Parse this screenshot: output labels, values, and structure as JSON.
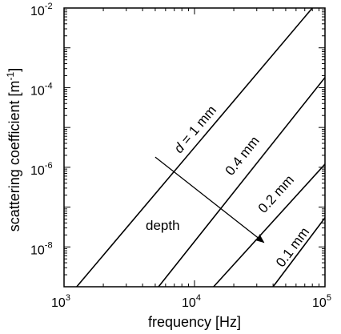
{
  "chart_data": {
    "type": "line",
    "title": "",
    "xlabel": "frequency [Hz]",
    "ylabel": "scattering coefficient [m",
    "ylabel_sup": "-1",
    "ylabel_close": "]",
    "x_scale": "log",
    "y_scale": "log",
    "xlim": [
      1000,
      100000
    ],
    "ylim": [
      1e-09,
      0.01
    ],
    "grid": false,
    "legend": "none",
    "x_ticks": [
      {
        "value": 1000,
        "base": "10",
        "exp": "3"
      },
      {
        "value": 10000,
        "base": "10",
        "exp": "4"
      },
      {
        "value": 100000,
        "base": "10",
        "exp": "5"
      }
    ],
    "y_ticks": [
      {
        "value": 1e-08,
        "base": "10",
        "exp": "-8"
      },
      {
        "value": 1e-06,
        "base": "10",
        "exp": "-6"
      },
      {
        "value": 0.0001,
        "base": "10",
        "exp": "-4"
      },
      {
        "value": 0.01,
        "base": "10",
        "exp": "-2"
      }
    ],
    "series": [
      {
        "label_italic": "d",
        "label_rest": " = 1 mm",
        "x": [
          1250,
          80000
        ],
        "y": [
          1e-09,
          0.01
        ]
      },
      {
        "label_italic": "",
        "label_rest": "0.4 mm",
        "x": [
          5300,
          100000
        ],
        "y": [
          1e-09,
          0.00018
        ]
      },
      {
        "label_italic": "",
        "label_rest": "0.2 mm",
        "x": [
          14000,
          100000
        ],
        "y": [
          1e-09,
          1.2e-06
        ]
      },
      {
        "label_italic": "",
        "label_rest": "0.1 mm",
        "x": [
          40000,
          100000
        ],
        "y": [
          1e-09,
          5.4e-08
        ]
      }
    ],
    "annotation": {
      "text": "depth",
      "from": [
        5000,
        1.8e-06
      ],
      "to": [
        34000,
        1.3e-08
      ]
    }
  }
}
